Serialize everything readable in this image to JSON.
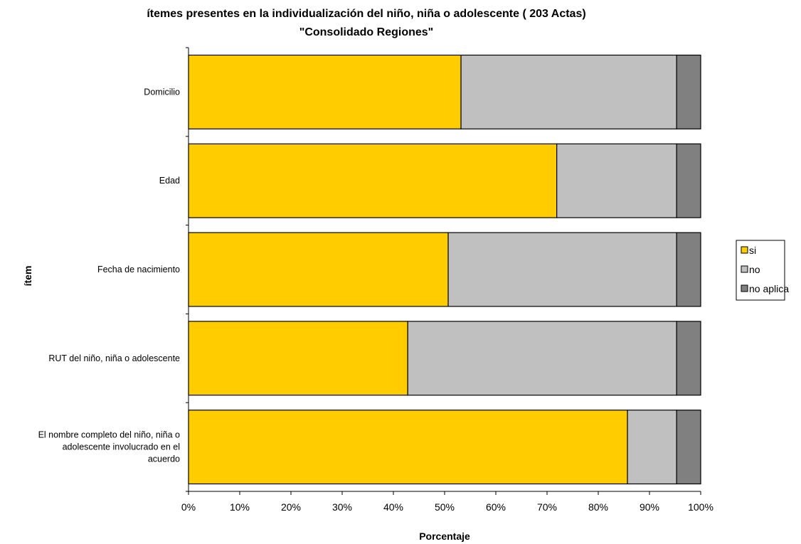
{
  "chart_data": {
    "type": "bar",
    "orientation": "horizontal",
    "stacked": "percent",
    "title": "ítemes presentes en la individualización del niño, niña o adolescente ( 203 Actas)",
    "subtitle": "\"Consolidado Regiones\"",
    "xlabel": "Porcentaje",
    "ylabel": "ítem",
    "xlim": [
      0,
      100
    ],
    "x_ticks": [
      "0%",
      "10%",
      "20%",
      "30%",
      "40%",
      "50%",
      "60%",
      "70%",
      "80%",
      "90%",
      "100%"
    ],
    "categories": [
      [
        "Domicilio"
      ],
      [
        "Edad"
      ],
      [
        "Fecha de nacimiento"
      ],
      [
        "RUT del niño, niña o adolescente"
      ],
      [
        "El nombre completo del niño, niña o",
        "adolescente involucrado en el",
        "acuerdo"
      ]
    ],
    "series": [
      {
        "name": "si",
        "color": "#FFCC00",
        "values": [
          53.2,
          71.9,
          50.7,
          42.8,
          85.7
        ]
      },
      {
        "name": "no",
        "color": "#C0C0C0",
        "values": [
          42.1,
          23.4,
          44.6,
          52.5,
          9.6
        ]
      },
      {
        "name": "no aplica",
        "color": "#808080",
        "values": [
          4.7,
          4.7,
          4.7,
          4.7,
          4.7
        ]
      }
    ],
    "legend_position": "right",
    "grid": false
  }
}
